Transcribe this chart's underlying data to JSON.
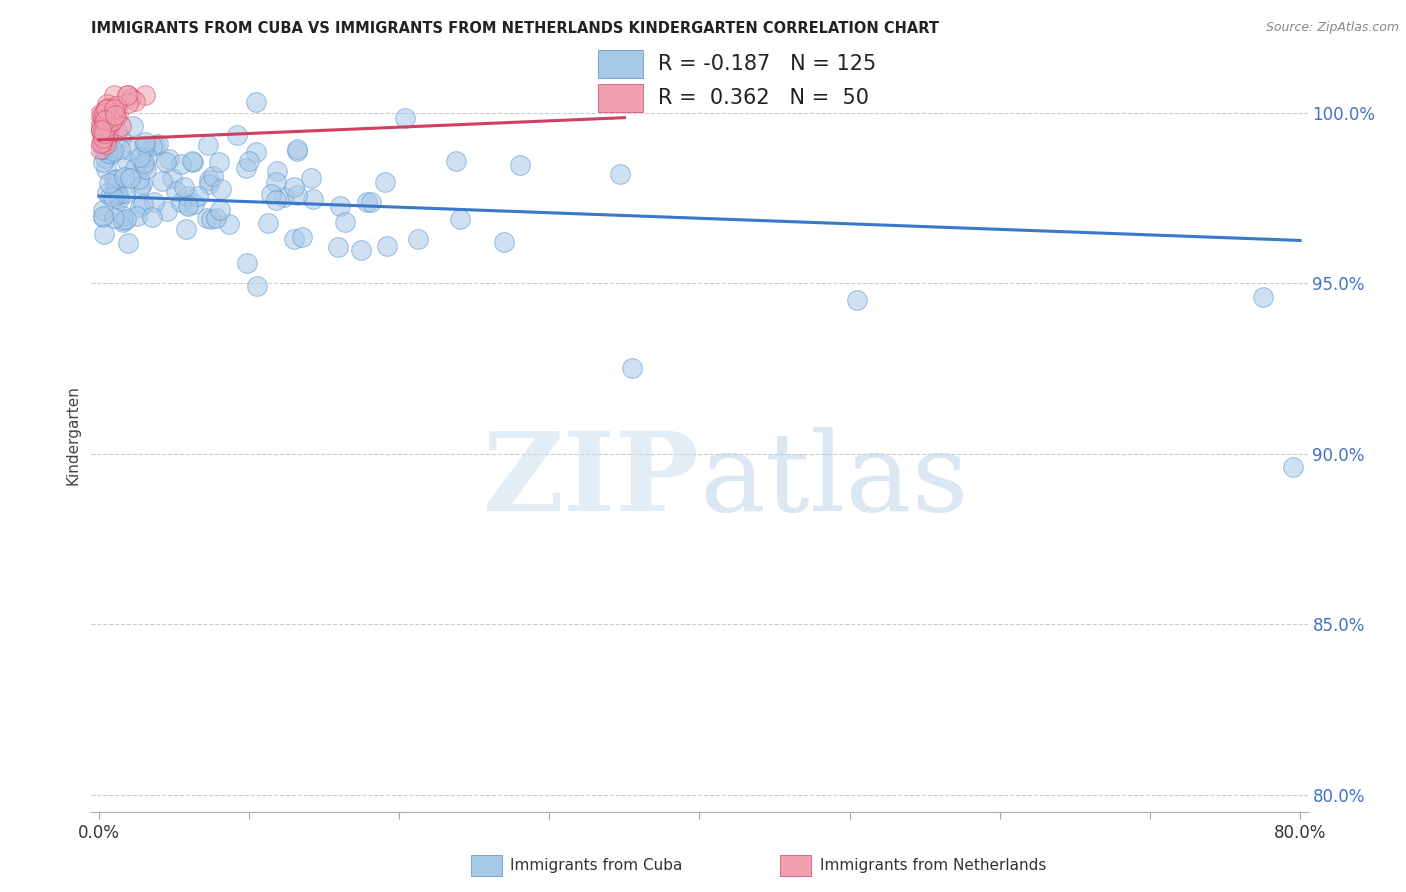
{
  "title": "IMMIGRANTS FROM CUBA VS IMMIGRANTS FROM NETHERLANDS KINDERGARTEN CORRELATION CHART",
  "source": "Source: ZipAtlas.com",
  "ylabel": "Kindergarten",
  "blue_color": "#a8c8e8",
  "pink_color": "#f0a0b0",
  "blue_edge_color": "#5090c8",
  "pink_edge_color": "#d04060",
  "blue_line_color": "#3a78c8",
  "pink_line_color": "#d04060",
  "legend_blue_R": "-0.187",
  "legend_blue_N": "125",
  "legend_pink_R": "0.362",
  "legend_pink_N": "50",
  "background_color": "#ffffff",
  "grid_color": "#cccccc",
  "ytick_color": "#4472c4",
  "title_color": "#222222",
  "source_color": "#888888"
}
